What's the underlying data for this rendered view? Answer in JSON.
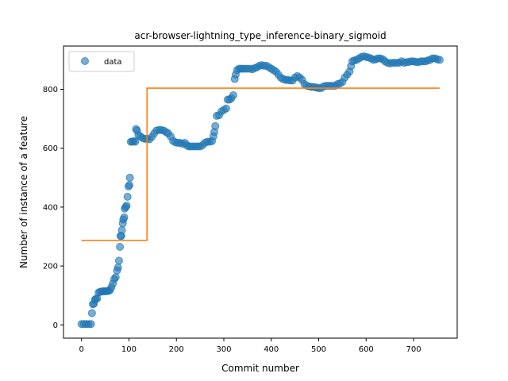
{
  "chart_data": {
    "type": "scatter",
    "title": "acr-browser-lightning_type_inference-binary_sigmoid",
    "xlabel": "Commit number",
    "ylabel": "Number of instance of a feature",
    "xlim": [
      -38,
      792
    ],
    "ylim": [
      -45,
      947
    ],
    "xticks": [
      0,
      100,
      200,
      300,
      400,
      500,
      600,
      700
    ],
    "yticks": [
      0,
      200,
      400,
      600,
      800
    ],
    "legend": {
      "placement": "top-left",
      "entries": [
        "data"
      ]
    },
    "grid": false,
    "colors": {
      "data": "#1f77b4",
      "fit": "#ff7f0e"
    },
    "series": [
      {
        "name": "data",
        "kind": "scatter",
        "points": [
          [
            0,
            3
          ],
          [
            5,
            3
          ],
          [
            10,
            3
          ],
          [
            15,
            3
          ],
          [
            20,
            3
          ],
          [
            22,
            40
          ],
          [
            24,
            70
          ],
          [
            26,
            72
          ],
          [
            28,
            85
          ],
          [
            30,
            88
          ],
          [
            33,
            90
          ],
          [
            36,
            110
          ],
          [
            39,
            112
          ],
          [
            42,
            113
          ],
          [
            45,
            114
          ],
          [
            48,
            114
          ],
          [
            51,
            114
          ],
          [
            54,
            115
          ],
          [
            57,
            115
          ],
          [
            60,
            118
          ],
          [
            63,
            128
          ],
          [
            66,
            140
          ],
          [
            69,
            155
          ],
          [
            72,
            162
          ],
          [
            75,
            185
          ],
          [
            77,
            195
          ],
          [
            79,
            218
          ],
          [
            81,
            265
          ],
          [
            82,
            302
          ],
          [
            84,
            302
          ],
          [
            85,
            322
          ],
          [
            87,
            345
          ],
          [
            88,
            358
          ],
          [
            90,
            365
          ],
          [
            91,
            395
          ],
          [
            93,
            400
          ],
          [
            95,
            405
          ],
          [
            97,
            435
          ],
          [
            99,
            470
          ],
          [
            101,
            475
          ],
          [
            102,
            500
          ],
          [
            104,
            622
          ],
          [
            107,
            622
          ],
          [
            110,
            624
          ],
          [
            113,
            622
          ],
          [
            115,
            665
          ],
          [
            117,
            660
          ],
          [
            120,
            645
          ],
          [
            124,
            640
          ],
          [
            128,
            635
          ],
          [
            133,
            632
          ],
          [
            138,
            632
          ],
          [
            143,
            630
          ],
          [
            148,
            638
          ],
          [
            153,
            650
          ],
          [
            158,
            660
          ],
          [
            163,
            662
          ],
          [
            168,
            662
          ],
          [
            173,
            660
          ],
          [
            178,
            655
          ],
          [
            183,
            650
          ],
          [
            188,
            640
          ],
          [
            193,
            625
          ],
          [
            198,
            620
          ],
          [
            203,
            618
          ],
          [
            208,
            618
          ],
          [
            213,
            615
          ],
          [
            218,
            618
          ],
          [
            222,
            610
          ],
          [
            226,
            606
          ],
          [
            230,
            606
          ],
          [
            235,
            606
          ],
          [
            240,
            606
          ],
          [
            245,
            606
          ],
          [
            250,
            606
          ],
          [
            255,
            610
          ],
          [
            260,
            618
          ],
          [
            265,
            622
          ],
          [
            270,
            622
          ],
          [
            275,
            624
          ],
          [
            278,
            640
          ],
          [
            280,
            655
          ],
          [
            282,
            675
          ],
          [
            285,
            710
          ],
          [
            290,
            712
          ],
          [
            295,
            725
          ],
          [
            300,
            730
          ],
          [
            305,
            735
          ],
          [
            308,
            765
          ],
          [
            312,
            765
          ],
          [
            316,
            770
          ],
          [
            320,
            780
          ],
          [
            323,
            835
          ],
          [
            325,
            850
          ],
          [
            328,
            865
          ],
          [
            332,
            870
          ],
          [
            336,
            870
          ],
          [
            340,
            870
          ],
          [
            345,
            870
          ],
          [
            350,
            870
          ],
          [
            355,
            870
          ],
          [
            360,
            868
          ],
          [
            365,
            872
          ],
          [
            370,
            875
          ],
          [
            375,
            880
          ],
          [
            380,
            882
          ],
          [
            385,
            880
          ],
          [
            390,
            880
          ],
          [
            395,
            875
          ],
          [
            400,
            870
          ],
          [
            405,
            865
          ],
          [
            410,
            860
          ],
          [
            415,
            850
          ],
          [
            420,
            840
          ],
          [
            425,
            835
          ],
          [
            430,
            832
          ],
          [
            435,
            832
          ],
          [
            440,
            830
          ],
          [
            445,
            830
          ],
          [
            450,
            840
          ],
          [
            455,
            845
          ],
          [
            460,
            840
          ],
          [
            465,
            832
          ],
          [
            470,
            818
          ],
          [
            475,
            812
          ],
          [
            480,
            810
          ],
          [
            485,
            808
          ],
          [
            490,
            808
          ],
          [
            495,
            806
          ],
          [
            500,
            804
          ],
          [
            505,
            804
          ],
          [
            510,
            810
          ],
          [
            515,
            812
          ],
          [
            520,
            812
          ],
          [
            525,
            812
          ],
          [
            530,
            812
          ],
          [
            535,
            812
          ],
          [
            540,
            818
          ],
          [
            545,
            820
          ],
          [
            550,
            825
          ],
          [
            555,
            840
          ],
          [
            560,
            850
          ],
          [
            565,
            860
          ],
          [
            568,
            878
          ],
          [
            571,
            895
          ],
          [
            575,
            898
          ],
          [
            580,
            900
          ],
          [
            585,
            905
          ],
          [
            590,
            910
          ],
          [
            595,
            912
          ],
          [
            600,
            910
          ],
          [
            605,
            908
          ],
          [
            610,
            905
          ],
          [
            615,
            900
          ],
          [
            620,
            902
          ],
          [
            625,
            905
          ],
          [
            630,
            905
          ],
          [
            635,
            902
          ],
          [
            640,
            895
          ],
          [
            645,
            890
          ],
          [
            650,
            888
          ],
          [
            655,
            890
          ],
          [
            660,
            890
          ],
          [
            665,
            890
          ],
          [
            670,
            890
          ],
          [
            675,
            895
          ],
          [
            680,
            890
          ],
          [
            685,
            892
          ],
          [
            690,
            893
          ],
          [
            695,
            895
          ],
          [
            700,
            895
          ],
          [
            705,
            893
          ],
          [
            710,
            892
          ],
          [
            715,
            895
          ],
          [
            720,
            895
          ],
          [
            725,
            895
          ],
          [
            730,
            898
          ],
          [
            735,
            900
          ],
          [
            740,
            905
          ],
          [
            745,
            905
          ],
          [
            750,
            902
          ],
          [
            755,
            900
          ]
        ]
      },
      {
        "name": "",
        "kind": "step-line",
        "points": [
          [
            0,
            287
          ],
          [
            138,
            287
          ],
          [
            138,
            804
          ],
          [
            755,
            804
          ]
        ]
      }
    ]
  }
}
